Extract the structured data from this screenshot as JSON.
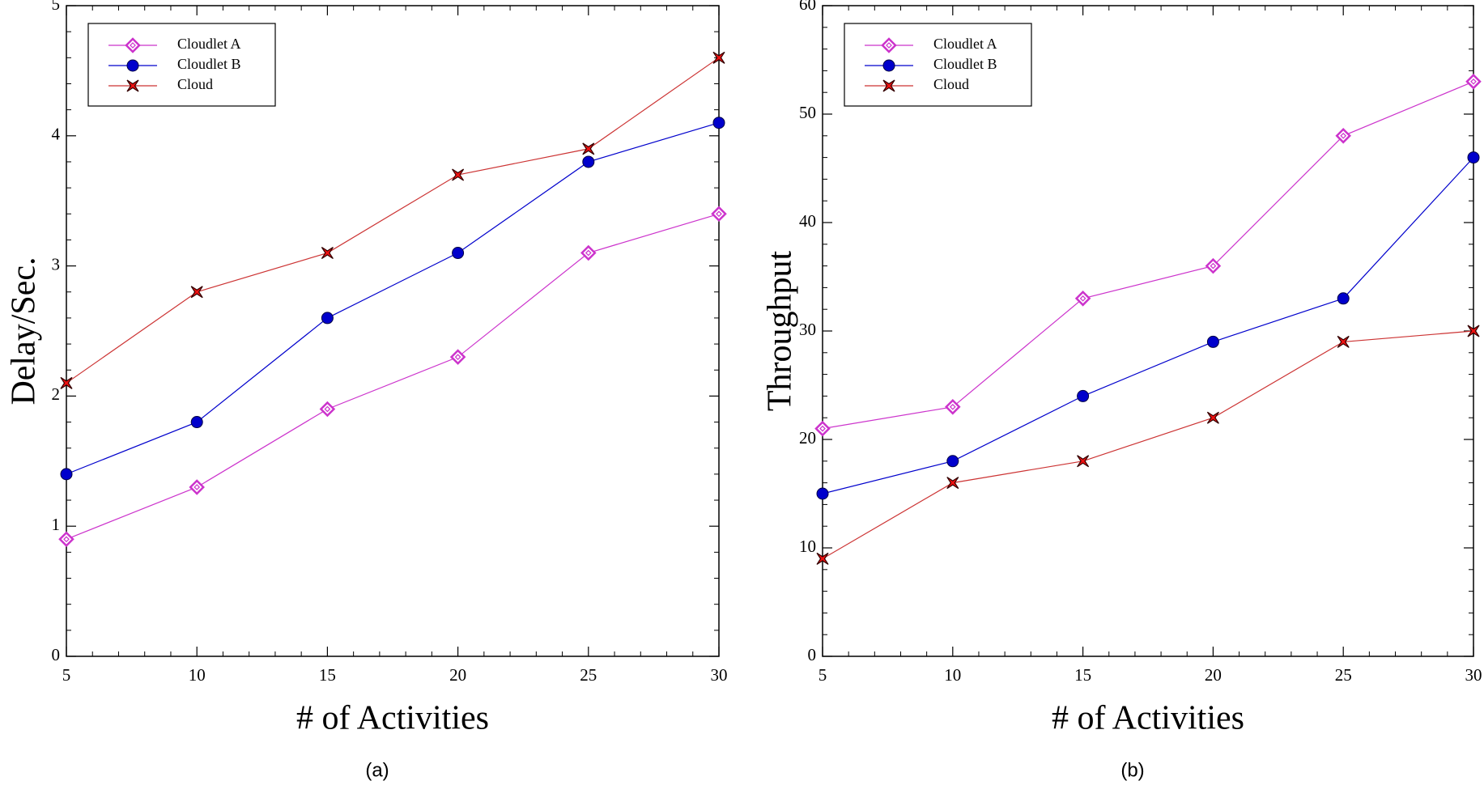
{
  "chart_data": [
    {
      "type": "line",
      "caption": "(a)",
      "xlabel": "# of Activities",
      "ylabel": "Delay/Sec.",
      "x": [
        5,
        10,
        15,
        20,
        25,
        30
      ],
      "xlim": [
        5,
        30
      ],
      "xticks": [
        5,
        10,
        15,
        20,
        25,
        30
      ],
      "ylim": [
        0,
        5
      ],
      "yticks": [
        0,
        1,
        2,
        3,
        4,
        5
      ],
      "legend": "upper left",
      "series": [
        {
          "name": "Cloudlet A",
          "color": "#cc33cc",
          "marker": "diamond",
          "values": [
            0.9,
            1.3,
            1.9,
            2.3,
            3.1,
            3.4
          ]
        },
        {
          "name": "Cloudlet B",
          "color": "#0000cc",
          "marker": "circle",
          "values": [
            1.4,
            1.8,
            2.6,
            3.1,
            3.8,
            4.1
          ]
        },
        {
          "name": "Cloud",
          "color": "#cc3333",
          "marker": "star",
          "values": [
            2.1,
            2.8,
            3.1,
            3.7,
            3.9,
            4.6
          ]
        }
      ]
    },
    {
      "type": "line",
      "caption": "(b)",
      "xlabel": "# of Activities",
      "ylabel": "Throughput",
      "x": [
        5,
        10,
        15,
        20,
        25,
        30
      ],
      "xlim": [
        5,
        30
      ],
      "xticks": [
        5,
        10,
        15,
        20,
        25,
        30
      ],
      "ylim": [
        0,
        60
      ],
      "yticks": [
        0,
        10,
        20,
        30,
        40,
        50,
        60
      ],
      "legend": "upper left",
      "series": [
        {
          "name": "Cloudlet A",
          "color": "#cc33cc",
          "marker": "diamond",
          "values": [
            21,
            23,
            33,
            36,
            48,
            53
          ]
        },
        {
          "name": "Cloudlet B",
          "color": "#0000cc",
          "marker": "circle",
          "values": [
            15,
            18,
            24,
            29,
            33,
            46
          ]
        },
        {
          "name": "Cloud",
          "color": "#cc3333",
          "marker": "star",
          "values": [
            9,
            16,
            18,
            22,
            29,
            30
          ]
        }
      ]
    }
  ]
}
